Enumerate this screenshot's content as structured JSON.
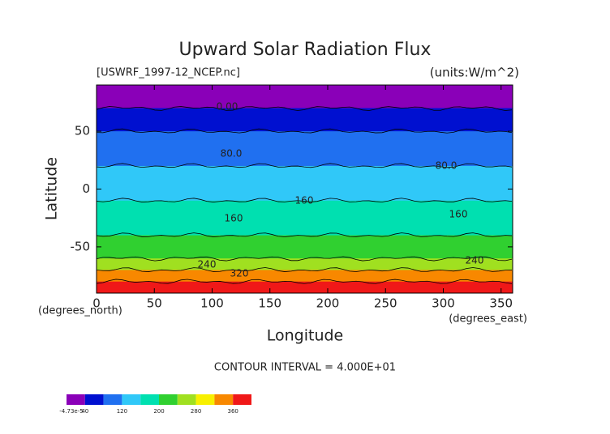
{
  "chart_data": {
    "type": "contour",
    "title": "Upward Solar Radiation Flux",
    "subtitle_left": "[USWRF_1997-12_NCEP.nc]",
    "subtitle_right": "(units:W/m^2)",
    "xlabel": "Longitude",
    "ylabel": "Latitude",
    "x_unit": "(degrees_east)",
    "y_unit": "(degrees_north)",
    "note": "CONTOUR INTERVAL = 4.000E+01",
    "xlim": [
      0,
      360
    ],
    "ylim": [
      -90,
      90
    ],
    "xticks": [
      0,
      50,
      100,
      150,
      200,
      250,
      300,
      350
    ],
    "yticks": [
      -50,
      0,
      50
    ],
    "y": [
      85,
      75,
      65,
      55,
      45,
      35,
      25,
      15,
      5,
      -5,
      -15,
      -25,
      -35,
      -45,
      -55,
      -65,
      -75,
      -85
    ],
    "values": [
      5,
      15,
      45,
      60,
      80,
      95,
      110,
      120,
      135,
      155,
      165,
      180,
      190,
      200,
      215,
      240,
      330,
      370
    ],
    "levels": [
      0,
      40,
      80,
      120,
      160,
      200,
      240,
      280,
      320,
      360,
      400
    ],
    "colors": [
      "#8a00b8",
      "#0010d0",
      "#2070f0",
      "#30c8f8",
      "#00e0b0",
      "#30d030",
      "#a0e020",
      "#f8f000",
      "#f88800",
      "#f01818"
    ],
    "top_color": "#f8a0a8",
    "contour_labels": [
      "0.00",
      "80.0",
      "80.0",
      "160",
      "160",
      "160",
      "240",
      "240",
      "320"
    ],
    "colorbar_ticks": [
      {
        "value": -4.73e-05,
        "label": "-4.73e-5"
      },
      40,
      120,
      200,
      280,
      360
    ]
  }
}
